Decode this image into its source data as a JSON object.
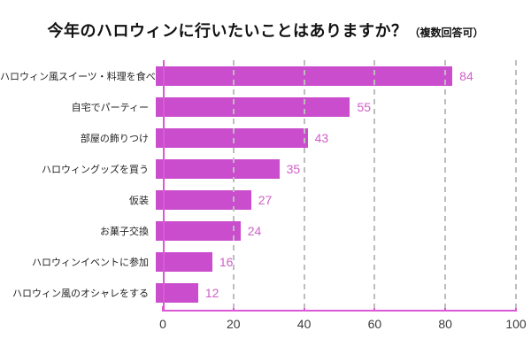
{
  "title": {
    "main": "今年のハロウィンに行いたいことはありますか？",
    "note": "（複数回答可）"
  },
  "chart_data": {
    "type": "bar",
    "orientation": "horizontal",
    "title": "今年のハロウィンに行いたいことはありますか？（複数回答可）",
    "categories": [
      "ハロウィン風スイーツ・料理を食べる",
      "自宅でパーティー",
      "部屋の飾りつけ",
      "ハロウィングッズを買う",
      "仮装",
      "お菓子交換",
      "ハロウィンイベントに参加",
      "ハロウィン風のオシャレをする"
    ],
    "values": [
      84,
      55,
      43,
      35,
      27,
      24,
      16,
      12
    ],
    "xlim": [
      0,
      100
    ],
    "xticks": [
      0,
      20,
      40,
      60,
      80,
      100
    ],
    "grid": "vertical-dashed",
    "legend": "none",
    "colors": {
      "bar": "#C94DCC",
      "axis": "#DB59D5",
      "value_label": "#D05FC8",
      "grid": "#BDBDBD",
      "label_text": "#222222",
      "tick_text": "#3C3C3C",
      "title_text": "#111111",
      "background": "#FFFFFF"
    }
  }
}
